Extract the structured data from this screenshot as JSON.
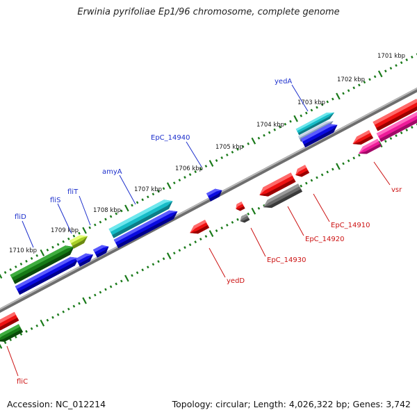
{
  "title": "Erwinia pyrifoliae Ep1/96 chromosome, complete genome",
  "footer": {
    "accession_label": "Accession:",
    "accession": "NC_012214",
    "topology_text": "Topology: circular; Length: 4,026,322 bp; Genes: 3,742"
  },
  "colors": {
    "forward_label": "#1c2fcc",
    "reverse_label": "#cc1111",
    "tick": "#1a7a1a",
    "backbone": "#8a8a8a"
  },
  "scale_ticks": [
    {
      "label": "1701 kbp",
      "kbp": 1701
    },
    {
      "label": "1702 kbp",
      "kbp": 1702
    },
    {
      "label": "1703 kbp",
      "kbp": 1703
    },
    {
      "label": "1704 kbp",
      "kbp": 1704
    },
    {
      "label": "1705 kbp",
      "kbp": 1705
    },
    {
      "label": "1706 kbp",
      "kbp": 1706
    },
    {
      "label": "1707 kbp",
      "kbp": 1707
    },
    {
      "label": "1708 kbp",
      "kbp": 1708
    },
    {
      "label": "1709 kbp",
      "kbp": 1709
    },
    {
      "label": "1710 kbp",
      "kbp": 1710
    }
  ],
  "gene_labels": [
    {
      "name": "yedA",
      "strand": "forward"
    },
    {
      "name": "EpC_14940",
      "strand": "forward"
    },
    {
      "name": "amyA",
      "strand": "forward"
    },
    {
      "name": "fliT",
      "strand": "forward"
    },
    {
      "name": "fliS",
      "strand": "forward"
    },
    {
      "name": "fliD",
      "strand": "forward"
    },
    {
      "name": "vsr",
      "strand": "reverse"
    },
    {
      "name": "EpC_14910",
      "strand": "reverse"
    },
    {
      "name": "EpC_14920",
      "strand": "reverse"
    },
    {
      "name": "EpC_14930",
      "strand": "reverse"
    },
    {
      "name": "yedD",
      "strand": "reverse"
    },
    {
      "name": "fliC",
      "strand": "reverse"
    }
  ]
}
